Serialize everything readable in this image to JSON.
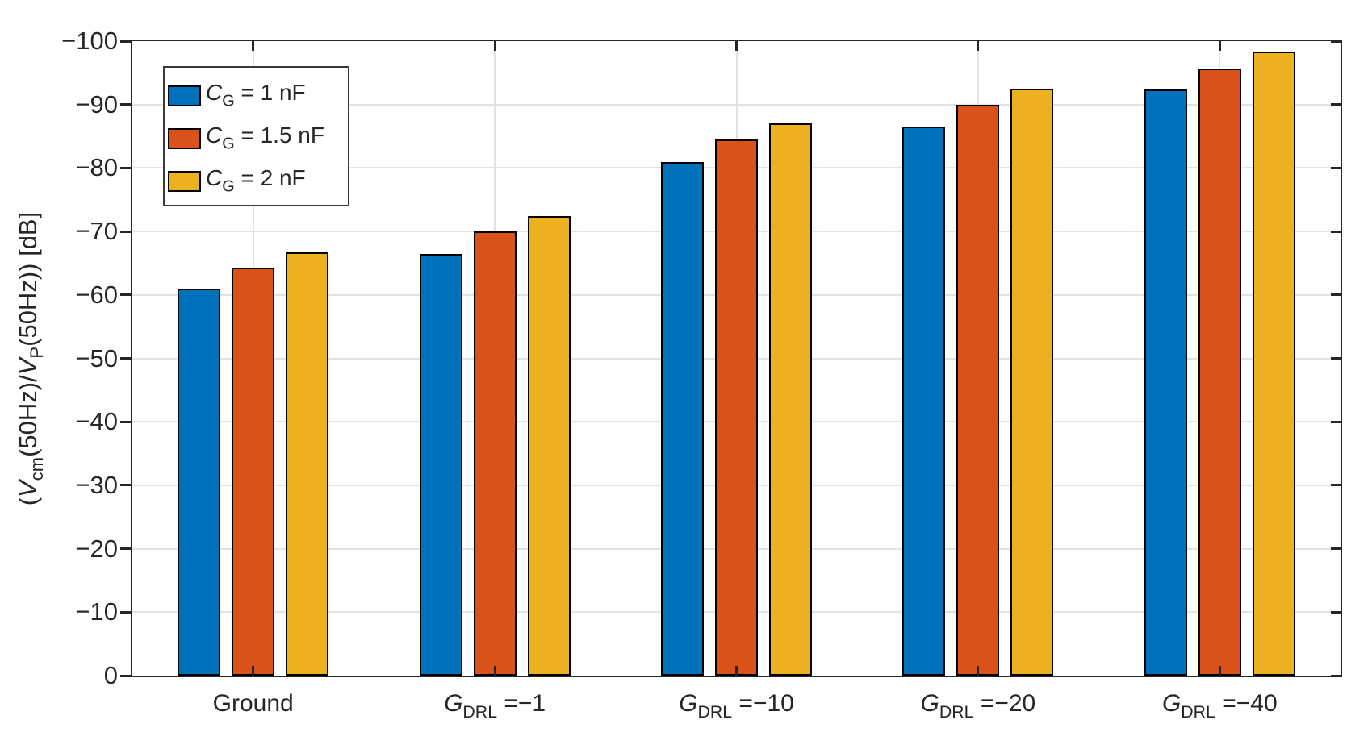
{
  "figure": {
    "background": "#ffffff"
  },
  "axes": {
    "ylabel": "(V_cm(50Hz)/V_P(50Hz)) [dB]",
    "ylabel_parts": {
      "p1": "(",
      "v1": "V",
      "s1": "cm",
      "m1": "(50Hz)/",
      "v2": "V",
      "s2": "P",
      "m2": "(50Hz)) [dB]"
    },
    "frame_color": "#262626",
    "grid_color": "#e2e2e2",
    "text_color": "#262626"
  },
  "legend": {
    "position": "top-left-inside",
    "items": [
      {
        "italic": "C",
        "sub": "G",
        "rest": " = 1 nF"
      },
      {
        "italic": "C",
        "sub": "G",
        "rest": " = 1.5 nF"
      },
      {
        "italic": "C",
        "sub": "G",
        "rest": " = 2 nF"
      }
    ]
  },
  "chart_data": {
    "type": "bar",
    "title": "",
    "xlabel": "",
    "ylabel": "(V_cm(50Hz)/V_P(50Hz)) [dB]",
    "ylim": [
      0,
      -100
    ],
    "axis_reversed": true,
    "grid": true,
    "legend_position": "top-left-inside",
    "categories": [
      "Ground",
      "G_DRL =−1",
      "G_DRL =−10",
      "G_DRL =−20",
      "G_DRL =−40"
    ],
    "categories_rich": [
      {
        "text": "Ground"
      },
      {
        "italic": "G",
        "sub": "DRL",
        "rest": " =−1"
      },
      {
        "italic": "G",
        "sub": "DRL",
        "rest": " =−10"
      },
      {
        "italic": "G",
        "sub": "DRL",
        "rest": " =−20"
      },
      {
        "italic": "G",
        "sub": "DRL",
        "rest": " =−40"
      }
    ],
    "series": [
      {
        "name": "C_G = 1 nF",
        "color": "#0072BD",
        "values": [
          -61.0,
          -66.5,
          -81.0,
          -86.5,
          -92.4
        ]
      },
      {
        "name": "C_G = 1.5 nF",
        "color": "#D95319",
        "values": [
          -64.3,
          -70.0,
          -84.5,
          -90.0,
          -95.7
        ]
      },
      {
        "name": "C_G = 2 nF",
        "color": "#EDB120",
        "values": [
          -66.7,
          -72.4,
          -87.0,
          -92.5,
          -98.3
        ]
      }
    ],
    "yticks": [
      {
        "v": 0,
        "label": "0"
      },
      {
        "v": -10,
        "label": "−10"
      },
      {
        "v": -20,
        "label": "−20"
      },
      {
        "v": -30,
        "label": "−30"
      },
      {
        "v": -40,
        "label": "−40"
      },
      {
        "v": -50,
        "label": "−50"
      },
      {
        "v": -60,
        "label": "−60"
      },
      {
        "v": -70,
        "label": "−70"
      },
      {
        "v": -80,
        "label": "−80"
      },
      {
        "v": -90,
        "label": "−90"
      },
      {
        "v": -100,
        "label": "−100"
      }
    ]
  }
}
